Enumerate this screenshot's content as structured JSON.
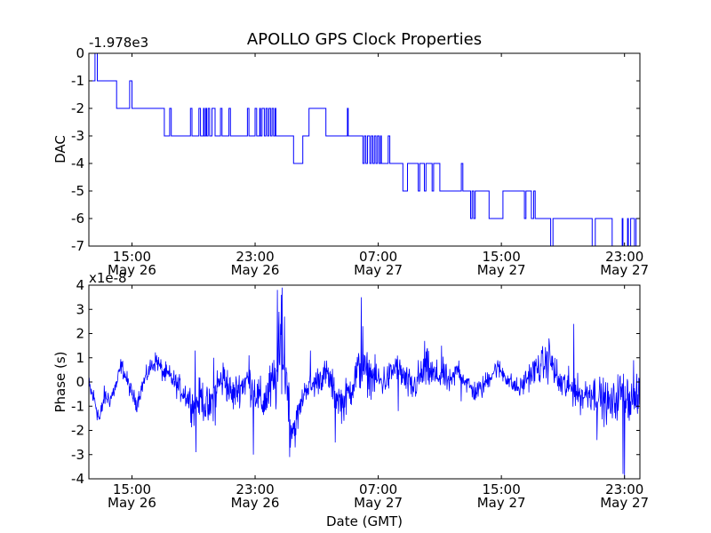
{
  "chart_data": {
    "title": "APOLLO GPS Clock Properties",
    "xlabel": "Date (GMT)",
    "x_ticks": [
      {
        "t": 15,
        "time": "15:00",
        "date": "May 26"
      },
      {
        "t": 23,
        "time": "23:00",
        "date": "May 26"
      },
      {
        "t": 31,
        "time": "07:00",
        "date": "May 27"
      },
      {
        "t": 39,
        "time": "15:00",
        "date": "May 27"
      },
      {
        "t": 47,
        "time": "23:00",
        "date": "May 27"
      }
    ],
    "xlim": [
      12.2,
      48.0
    ],
    "panels": [
      {
        "type": "line",
        "ylabel": "DAC",
        "offset_label": "-1.978e3",
        "ylim": [
          -7,
          0
        ],
        "yticks": [
          0,
          -1,
          -2,
          -3,
          -4,
          -5,
          -6,
          -7
        ],
        "ytick_labels": [
          "0",
          "-1",
          "-2",
          "-3",
          "-4",
          "-5",
          "-6",
          "-7"
        ],
        "series": [
          {
            "name": "DAC",
            "color": "#0000ff",
            "steps": [
              [
                12.2,
                -1
              ],
              [
                12.6,
                0
              ],
              [
                12.75,
                -1
              ],
              [
                14.0,
                -2
              ],
              [
                14.85,
                -1
              ],
              [
                15.0,
                -2
              ],
              [
                17.1,
                -3
              ],
              [
                17.45,
                -2
              ],
              [
                17.55,
                -3
              ],
              [
                18.8,
                -2
              ],
              [
                18.9,
                -3
              ],
              [
                19.35,
                -2
              ],
              [
                19.45,
                -3
              ],
              [
                19.65,
                -2
              ],
              [
                19.7,
                -3
              ],
              [
                19.8,
                -2
              ],
              [
                19.85,
                -3
              ],
              [
                19.95,
                -2
              ],
              [
                20.05,
                -3
              ],
              [
                20.2,
                -2
              ],
              [
                20.4,
                -3
              ],
              [
                20.75,
                -2
              ],
              [
                20.85,
                -3
              ],
              [
                21.3,
                -2
              ],
              [
                21.4,
                -3
              ],
              [
                22.5,
                -2
              ],
              [
                22.6,
                -3
              ],
              [
                23.0,
                -2
              ],
              [
                23.1,
                -3
              ],
              [
                23.3,
                -2
              ],
              [
                23.35,
                -3
              ],
              [
                23.45,
                -2
              ],
              [
                23.6,
                -3
              ],
              [
                23.7,
                -2
              ],
              [
                23.8,
                -3
              ],
              [
                23.9,
                -2
              ],
              [
                24.0,
                -3
              ],
              [
                24.1,
                -2
              ],
              [
                24.2,
                -3
              ],
              [
                24.3,
                -2
              ],
              [
                24.35,
                -3
              ],
              [
                25.5,
                -4
              ],
              [
                26.1,
                -3
              ],
              [
                26.5,
                -2
              ],
              [
                27.6,
                -3
              ],
              [
                29.0,
                -2
              ],
              [
                29.05,
                -3
              ],
              [
                30.0,
                -4
              ],
              [
                30.1,
                -3
              ],
              [
                30.2,
                -4
              ],
              [
                30.3,
                -3
              ],
              [
                30.45,
                -4
              ],
              [
                30.55,
                -3
              ],
              [
                30.65,
                -4
              ],
              [
                30.75,
                -3
              ],
              [
                30.85,
                -4
              ],
              [
                30.95,
                -3
              ],
              [
                31.05,
                -4
              ],
              [
                31.15,
                -3
              ],
              [
                31.2,
                -4
              ],
              [
                31.65,
                -3
              ],
              [
                31.75,
                -4
              ],
              [
                32.6,
                -5
              ],
              [
                32.9,
                -4
              ],
              [
                33.6,
                -5
              ],
              [
                33.7,
                -4
              ],
              [
                34.0,
                -5
              ],
              [
                34.1,
                -4
              ],
              [
                34.5,
                -5
              ],
              [
                34.6,
                -4
              ],
              [
                35.0,
                -5
              ],
              [
                36.4,
                -4
              ],
              [
                36.5,
                -5
              ],
              [
                37.0,
                -6
              ],
              [
                37.1,
                -5
              ],
              [
                37.2,
                -6
              ],
              [
                37.3,
                -5
              ],
              [
                38.2,
                -6
              ],
              [
                39.1,
                -5
              ],
              [
                40.5,
                -6
              ],
              [
                40.6,
                -5
              ],
              [
                40.95,
                -6
              ],
              [
                41.1,
                -5
              ],
              [
                41.2,
                -6
              ],
              [
                42.2,
                -7
              ],
              [
                42.35,
                -6
              ],
              [
                44.9,
                -7
              ],
              [
                45.1,
                -6
              ],
              [
                46.2,
                -7
              ],
              [
                46.85,
                -6
              ],
              [
                46.9,
                -7
              ],
              [
                47.2,
                -6
              ],
              [
                47.25,
                -7
              ],
              [
                47.4,
                -6
              ],
              [
                47.5,
                -6
              ],
              [
                47.65,
                -7
              ],
              [
                47.75,
                -6
              ],
              [
                48.0,
                -6
              ]
            ]
          }
        ]
      },
      {
        "type": "line",
        "ylabel": "Phase (s)",
        "offset_label": "x1e-8",
        "ylim": [
          -4,
          4
        ],
        "yticks": [
          4,
          3,
          2,
          1,
          0,
          -1,
          -2,
          -3,
          -4
        ],
        "ytick_labels": [
          "4",
          "3",
          "2",
          "1",
          "0",
          "-1",
          "-2",
          "-3",
          "-4"
        ],
        "series": [
          {
            "name": "Phase",
            "color": "#0000ff",
            "anchors": [
              [
                12.2,
                -0.2
              ],
              [
                12.6,
                -0.8
              ],
              [
                12.9,
                -1.6
              ],
              [
                13.2,
                -0.6
              ],
              [
                13.6,
                -0.7
              ],
              [
                14.0,
                -0.1
              ],
              [
                14.3,
                0.7
              ],
              [
                14.6,
                0.2
              ],
              [
                15.0,
                -0.5
              ],
              [
                15.3,
                -0.9
              ],
              [
                15.7,
                -0.1
              ],
              [
                16.2,
                0.6
              ],
              [
                16.6,
                0.9
              ],
              [
                17.0,
                0.4
              ],
              [
                17.5,
                0.2
              ],
              [
                18.0,
                -0.2
              ],
              [
                18.5,
                -0.5
              ],
              [
                19.0,
                -1.0
              ],
              [
                19.5,
                -0.6
              ],
              [
                20.0,
                -1.2
              ],
              [
                20.5,
                -0.2
              ],
              [
                21.0,
                0.2
              ],
              [
                21.5,
                -0.6
              ],
              [
                22.0,
                -0.2
              ],
              [
                22.5,
                0.1
              ],
              [
                23.0,
                -0.4
              ],
              [
                23.5,
                -0.9
              ],
              [
                24.0,
                -0.3
              ],
              [
                24.4,
                0.1
              ],
              [
                24.7,
                1.3
              ],
              [
                24.9,
                0.3
              ],
              [
                25.1,
                0.1
              ],
              [
                25.3,
                -1.8
              ],
              [
                25.6,
                -1.9
              ],
              [
                25.9,
                -1.1
              ],
              [
                26.3,
                -0.2
              ],
              [
                26.7,
                -0.2
              ],
              [
                27.2,
                0.2
              ],
              [
                27.7,
                0.3
              ],
              [
                28.2,
                -0.5
              ],
              [
                28.7,
                -0.9
              ],
              [
                29.2,
                -0.3
              ],
              [
                29.7,
                0.5
              ],
              [
                30.2,
                0.4
              ],
              [
                30.7,
                0.2
              ],
              [
                31.2,
                0.0
              ],
              [
                31.7,
                0.2
              ],
              [
                32.2,
                0.7
              ],
              [
                32.7,
                0.1
              ],
              [
                33.2,
                -0.3
              ],
              [
                33.7,
                0.2
              ],
              [
                34.2,
                0.5
              ],
              [
                34.7,
                0.2
              ],
              [
                35.2,
                0.3
              ],
              [
                35.7,
                -0.1
              ],
              [
                36.2,
                0.6
              ],
              [
                36.7,
                0.0
              ],
              [
                37.2,
                -0.4
              ],
              [
                37.7,
                -0.3
              ],
              [
                38.2,
                0.2
              ],
              [
                38.7,
                0.6
              ],
              [
                39.2,
                0.3
              ],
              [
                39.7,
                -0.1
              ],
              [
                40.2,
                -0.3
              ],
              [
                40.7,
                0.2
              ],
              [
                41.2,
                0.5
              ],
              [
                41.7,
                0.7
              ],
              [
                42.2,
                0.9
              ],
              [
                42.7,
                0.0
              ],
              [
                43.2,
                -0.2
              ],
              [
                43.7,
                -0.3
              ],
              [
                44.2,
                -0.6
              ],
              [
                44.7,
                -0.4
              ],
              [
                45.2,
                -0.5
              ],
              [
                45.7,
                -0.8
              ],
              [
                46.2,
                -1.0
              ],
              [
                46.7,
                -0.4
              ],
              [
                47.2,
                -0.5
              ],
              [
                47.6,
                -0.9
              ],
              [
                48.0,
                -0.6
              ]
            ],
            "noise": [
              [
                12.2,
                0.5
              ],
              [
                13.5,
                0.4
              ],
              [
                15.5,
                0.35
              ],
              [
                18.0,
                0.5
              ],
              [
                19.2,
                0.8
              ],
              [
                20.5,
                0.9
              ],
              [
                22.0,
                0.7
              ],
              [
                23.5,
                0.9
              ],
              [
                24.5,
                1.4
              ],
              [
                25.0,
                1.2
              ],
              [
                26.0,
                0.5
              ],
              [
                28.0,
                0.7
              ],
              [
                30.0,
                0.9
              ],
              [
                32.0,
                0.6
              ],
              [
                34.0,
                0.8
              ],
              [
                36.0,
                0.5
              ],
              [
                38.0,
                0.45
              ],
              [
                40.0,
                0.4
              ],
              [
                42.0,
                0.8
              ],
              [
                44.0,
                0.7
              ],
              [
                46.0,
                0.9
              ],
              [
                48.0,
                0.9
              ]
            ],
            "spikes": [
              [
                19.1,
                1.3
              ],
              [
                19.15,
                -2.9
              ],
              [
                20.3,
                1.0
              ],
              [
                20.4,
                -1.8
              ],
              [
                22.6,
                1.1
              ],
              [
                22.9,
                -3.0
              ],
              [
                24.45,
                3.8
              ],
              [
                24.55,
                2.9
              ],
              [
                24.65,
                2.4
              ],
              [
                24.7,
                3.6
              ],
              [
                24.75,
                3.9
              ],
              [
                24.9,
                2.7
              ],
              [
                25.25,
                -3.1
              ],
              [
                26.6,
                1.3
              ],
              [
                28.2,
                -2.5
              ],
              [
                29.9,
                3.5
              ],
              [
                30.0,
                2.3
              ],
              [
                32.3,
                -1.2
              ],
              [
                34.0,
                1.7
              ],
              [
                34.2,
                1.4
              ],
              [
                35.1,
                1.5
              ],
              [
                36.4,
                -0.8
              ],
              [
                42.1,
                1.8
              ],
              [
                43.7,
                2.4
              ],
              [
                45.2,
                -2.4
              ],
              [
                46.9,
                -3.8
              ],
              [
                47.0,
                -4.0
              ],
              [
                47.3,
                -1.6
              ],
              [
                47.6,
                0.9
              ]
            ]
          }
        ]
      }
    ]
  }
}
